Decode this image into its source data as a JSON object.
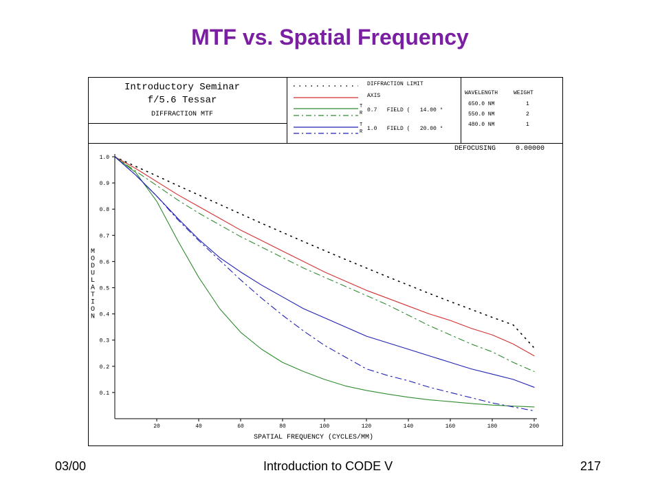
{
  "slide": {
    "title": "MTF vs. Spatial Frequency",
    "footer_left": "03/00",
    "footer_center": "Introduction to CODE V",
    "footer_right": "217"
  },
  "plot_header": {
    "line1": "Introductory Seminar",
    "line2": "f/5.6 Tessar",
    "line3": "DIFFRACTION MTF",
    "defocusing_label": "DEFOCUSING",
    "defocusing_value": "0.00000"
  },
  "legend": {
    "diffraction_limit": "DIFFRACTION LIMIT",
    "axis": "AXIS",
    "field07_tr": [
      "T",
      "R"
    ],
    "field07": "0.7   FIELD (   14.00 °",
    "field10_tr": [
      "T",
      "R"
    ],
    "field10": "1.0   FIELD (   20.00 °"
  },
  "wavelengths": {
    "header_wavelength": "WAVELENGTH",
    "header_weight": "WEIGHT",
    "rows": [
      {
        "wavelength": "650.0 NM",
        "weight": "1"
      },
      {
        "wavelength": "550.0 NM",
        "weight": "2"
      },
      {
        "wavelength": "480.0 NM",
        "weight": "1"
      }
    ]
  },
  "colors": {
    "title": "#7b1fa2",
    "diffraction": "#000000",
    "axis": "#d32f2f",
    "field07": "#2e8b2e",
    "field10": "#1f1fb4"
  },
  "chart_data": {
    "type": "line",
    "xlabel": "SPATIAL FREQUENCY (CYCLES/MM)",
    "ylabel": "MODULATION",
    "xlim": [
      0,
      200
    ],
    "ylim": [
      0,
      1.0
    ],
    "xticks": [
      20,
      40,
      60,
      80,
      100,
      120,
      140,
      160,
      180,
      200
    ],
    "yticks": [
      0.1,
      0.2,
      0.3,
      0.4,
      0.5,
      0.6,
      0.7,
      0.8,
      0.9,
      1.0
    ],
    "x": [
      0,
      10,
      20,
      30,
      40,
      50,
      60,
      70,
      80,
      90,
      100,
      110,
      120,
      130,
      140,
      150,
      160,
      170,
      180,
      190,
      200
    ],
    "series": [
      {
        "name": "DIFFRACTION LIMIT",
        "style": "dotted",
        "color_key": "diffraction",
        "values": [
          1.0,
          0.963,
          0.927,
          0.89,
          0.854,
          0.818,
          0.782,
          0.746,
          0.711,
          0.676,
          0.642,
          0.608,
          0.575,
          0.542,
          0.51,
          0.478,
          0.447,
          0.417,
          0.387,
          0.358,
          0.27
        ]
      },
      {
        "name": "AXIS",
        "style": "solid",
        "color_key": "axis",
        "values": [
          1.0,
          0.955,
          0.905,
          0.855,
          0.81,
          0.765,
          0.72,
          0.68,
          0.64,
          0.6,
          0.56,
          0.525,
          0.49,
          0.46,
          0.43,
          0.4,
          0.375,
          0.345,
          0.32,
          0.285,
          0.24
        ]
      },
      {
        "name": "0.7 FIELD T",
        "style": "solid",
        "color_key": "field07",
        "values": [
          1.0,
          0.94,
          0.83,
          0.68,
          0.54,
          0.42,
          0.33,
          0.265,
          0.215,
          0.18,
          0.15,
          0.125,
          0.108,
          0.094,
          0.082,
          0.072,
          0.065,
          0.058,
          0.052,
          0.048,
          0.045
        ]
      },
      {
        "name": "0.7 FIELD R",
        "style": "dashdot",
        "color_key": "field07",
        "values": [
          1.0,
          0.945,
          0.89,
          0.835,
          0.785,
          0.74,
          0.695,
          0.655,
          0.615,
          0.575,
          0.54,
          0.505,
          0.47,
          0.435,
          0.395,
          0.355,
          0.32,
          0.285,
          0.255,
          0.215,
          0.18
        ]
      },
      {
        "name": "1.0 FIELD T",
        "style": "solid",
        "color_key": "field10",
        "values": [
          1.0,
          0.93,
          0.85,
          0.765,
          0.685,
          0.615,
          0.56,
          0.51,
          0.465,
          0.42,
          0.385,
          0.35,
          0.315,
          0.29,
          0.265,
          0.24,
          0.215,
          0.19,
          0.17,
          0.15,
          0.12
        ]
      },
      {
        "name": "1.0 FIELD R",
        "style": "dashdot",
        "color_key": "field10",
        "values": [
          1.0,
          0.93,
          0.85,
          0.76,
          0.68,
          0.605,
          0.53,
          0.46,
          0.395,
          0.335,
          0.28,
          0.235,
          0.19,
          0.165,
          0.145,
          0.12,
          0.1,
          0.08,
          0.06,
          0.045,
          0.03
        ]
      }
    ]
  }
}
